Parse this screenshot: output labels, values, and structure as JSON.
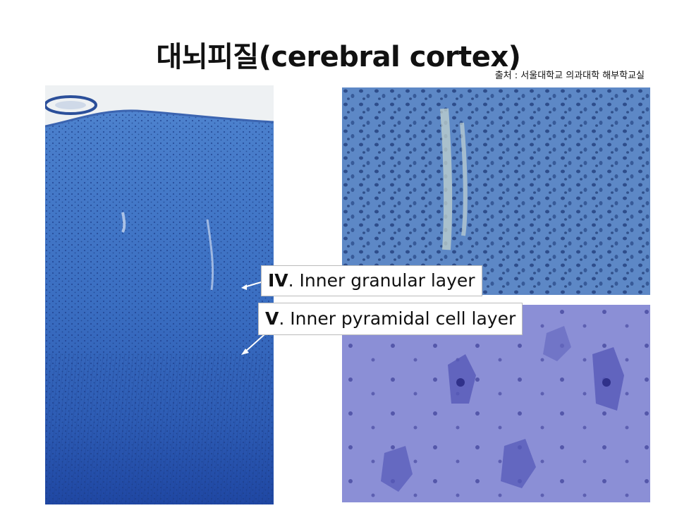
{
  "slide": {
    "title": "대뇌피질(cerebral cortex)",
    "source": "출처 : 서울대학교 의과대학 해부학교실"
  },
  "labels": {
    "iv_numeral": "IV",
    "iv_text": ". Inner granular layer",
    "v_numeral": "V",
    "v_text": ". Inner pyramidal cell layer"
  },
  "colors": {
    "left_tissue": "#2a5fb8",
    "top_right_tissue": "#5a86c4",
    "bottom_right_tissue": "#8c8fd6"
  }
}
